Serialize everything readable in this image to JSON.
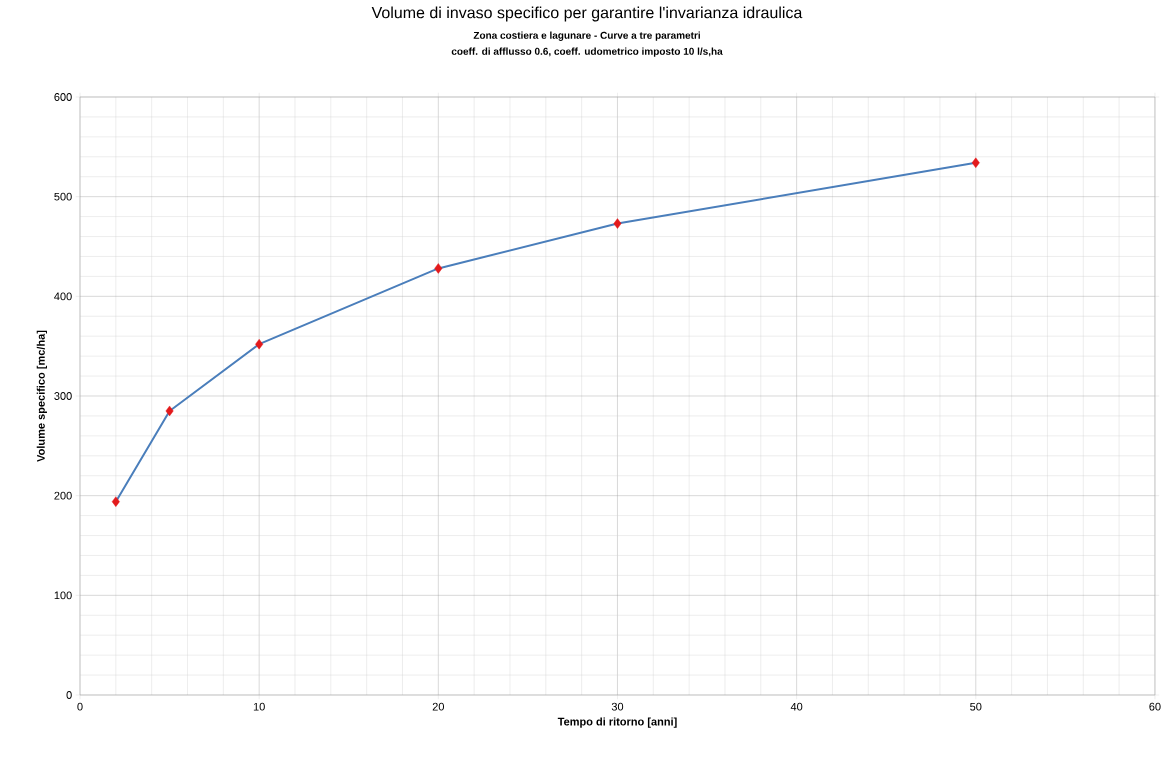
{
  "chart_data": {
    "type": "line",
    "title": "Volume di invaso specifico per garantire l'invarianza idraulica",
    "subtitle": "Zona costiera e lagunare - Curve a tre parametri",
    "annotations": [
      "coeff. di afflusso 0.6, coeff. udometrico imposto 10 l/s,ha"
    ],
    "xlabel": "Tempo di ritorno [anni]",
    "ylabel": "Volume specifico [mc/ha]",
    "x": [
      2,
      5,
      10,
      20,
      30,
      50
    ],
    "series": [
      {
        "color": "#4a7ebb",
        "colors": [
          "#e31a1c",
          "#e31a1c",
          "#e31a1c",
          "#e31a1c",
          "#e31a1c",
          "#e31a1c"
        ],
        "values": [
          194,
          285,
          352,
          428,
          473,
          534
        ]
      }
    ],
    "xlim": [
      0,
      60
    ],
    "ylim": [
      0,
      600
    ],
    "xticks": [
      0,
      10,
      20,
      30,
      40,
      50,
      60
    ],
    "yticks": [
      0,
      100,
      200,
      300,
      400,
      500,
      600
    ],
    "grid": true,
    "marker": "diamond",
    "line_style": "solid"
  }
}
